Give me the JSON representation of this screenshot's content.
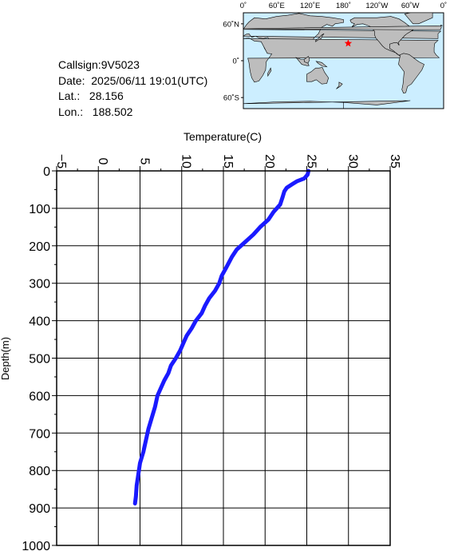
{
  "station": {
    "callsign": "Callsign:9V5023",
    "date": "Date:  2025/06/11 19:01(UTC)",
    "lat": "Lat.:   28.156",
    "lon": "Lon.:   188.502"
  },
  "map": {
    "lon_ticks": [
      "0˚",
      "60˚E",
      "120˚E",
      "180˚",
      "120˚W",
      "60˚W",
      "0˚"
    ],
    "lat_ticks": [
      "60˚N",
      "0˚",
      "60˚S"
    ],
    "marker": {
      "lat": 28.156,
      "lon": 188.502,
      "color": "#ff0000"
    },
    "ocean_color": "#cceeff",
    "land_color": "#bdbdbd"
  },
  "chart_data": {
    "type": "line",
    "xlabel": "Temperature(C)",
    "ylabel": "Depth(m)",
    "xlim": [
      -5,
      35
    ],
    "ylim": [
      0,
      1000
    ],
    "y_inverted": true,
    "x_axis_position": "top",
    "x_ticks": [
      -5,
      0,
      5,
      10,
      15,
      20,
      25,
      30,
      35
    ],
    "y_ticks": [
      0,
      100,
      200,
      300,
      400,
      500,
      600,
      700,
      800,
      900,
      1000
    ],
    "grid": true,
    "series": [
      {
        "color": "#1a1aff",
        "points": [
          [
            25.2,
            0
          ],
          [
            25.1,
            10
          ],
          [
            24.7,
            20
          ],
          [
            23.8,
            28
          ],
          [
            23.3,
            35
          ],
          [
            22.6,
            45
          ],
          [
            22.3,
            55
          ],
          [
            22.1,
            70
          ],
          [
            21.8,
            90
          ],
          [
            21.0,
            110
          ],
          [
            20.4,
            130
          ],
          [
            19.4,
            150
          ],
          [
            18.6,
            170
          ],
          [
            17.6,
            190
          ],
          [
            16.6,
            210
          ],
          [
            16.0,
            230
          ],
          [
            15.3,
            260
          ],
          [
            14.8,
            280
          ],
          [
            14.5,
            300
          ],
          [
            14.0,
            320
          ],
          [
            13.3,
            340
          ],
          [
            12.8,
            360
          ],
          [
            12.4,
            380
          ],
          [
            11.7,
            400
          ],
          [
            11.2,
            420
          ],
          [
            10.6,
            440
          ],
          [
            10.2,
            460
          ],
          [
            9.8,
            480
          ],
          [
            9.3,
            500
          ],
          [
            8.7,
            520
          ],
          [
            8.4,
            540
          ],
          [
            7.9,
            560
          ],
          [
            7.5,
            580
          ],
          [
            7.1,
            600
          ],
          [
            6.8,
            630
          ],
          [
            6.4,
            660
          ],
          [
            6.0,
            690
          ],
          [
            5.7,
            720
          ],
          [
            5.4,
            750
          ],
          [
            5.0,
            780
          ],
          [
            4.8,
            810
          ],
          [
            4.6,
            840
          ],
          [
            4.5,
            870
          ],
          [
            4.4,
            888
          ]
        ]
      }
    ]
  }
}
